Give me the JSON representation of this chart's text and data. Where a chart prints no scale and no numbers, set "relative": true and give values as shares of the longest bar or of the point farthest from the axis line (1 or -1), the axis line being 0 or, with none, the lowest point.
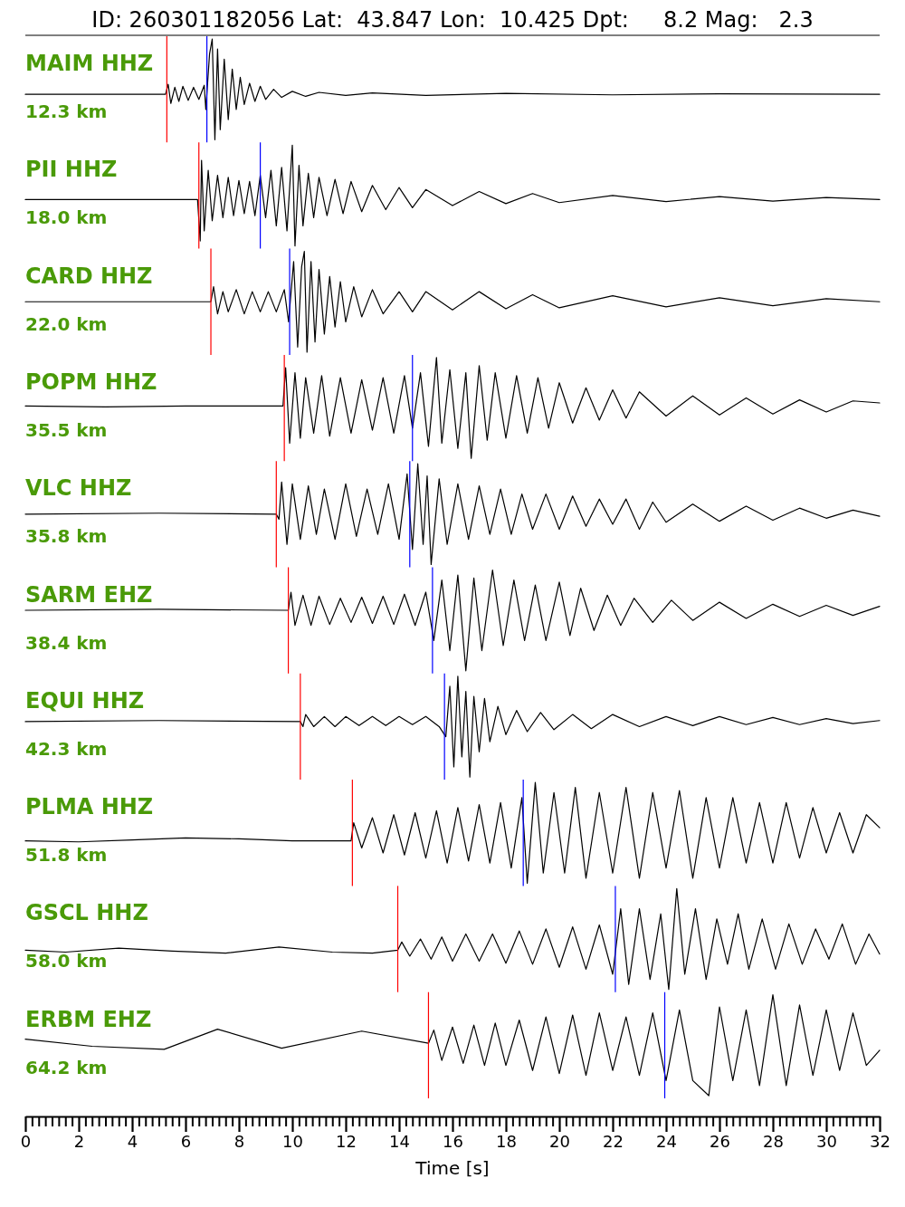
{
  "chart_data": [
    {
      "type": "other",
      "title": "ID: 260301182056 Lat:  43.847 Lon:  10.425 Dpt:     8.2 Mag:   2.3"
    },
    {
      "type": "line",
      "relative": true,
      "title": "MAIM HHZ",
      "annotations": [
        "12.3 km"
      ],
      "xlim": [
        0,
        32
      ],
      "tick_labels": false,
      "ref_lines": [
        {
          "axis": "x",
          "value": 5.3,
          "color": "#ff0000"
        },
        {
          "axis": "x",
          "value": 6.8,
          "color": "#0000ff"
        }
      ],
      "series": [
        {
          "color": "#000000",
          "x": [
            0,
            5.25,
            5.35,
            5.45,
            5.6,
            5.75,
            5.9,
            6.1,
            6.3,
            6.5,
            6.7,
            6.76,
            6.9,
            7.0,
            7.1,
            7.2,
            7.3,
            7.45,
            7.6,
            7.75,
            7.9,
            8.05,
            8.2,
            8.4,
            8.6,
            8.8,
            9.0,
            9.3,
            9.6,
            10,
            10.5,
            11,
            12,
            13,
            15,
            18,
            22,
            26,
            32
          ],
          "values": [
            0.45,
            0.45,
            0.55,
            0.36,
            0.52,
            0.38,
            0.53,
            0.39,
            0.52,
            0.4,
            0.54,
            0.3,
            0.85,
            1,
            0,
            0.9,
            0.1,
            0.8,
            0.2,
            0.7,
            0.3,
            0.62,
            0.35,
            0.56,
            0.38,
            0.53,
            0.4,
            0.5,
            0.42,
            0.48,
            0.43,
            0.47,
            0.44,
            0.465,
            0.44,
            0.46,
            0.445,
            0.455,
            0.45
          ]
        }
      ]
    },
    {
      "type": "line",
      "relative": true,
      "title": "PII HHZ",
      "annotations": [
        "18.0 km"
      ],
      "xlim": [
        0,
        32
      ],
      "tick_labels": false,
      "ref_lines": [
        {
          "axis": "x",
          "value": 6.5,
          "color": "#ff0000"
        },
        {
          "axis": "x",
          "value": 8.8,
          "color": "#0000ff"
        }
      ],
      "series": [
        {
          "color": "#000000",
          "x": [
            0,
            6.45,
            6.55,
            6.6,
            6.7,
            6.85,
            7.0,
            7.2,
            7.4,
            7.6,
            7.8,
            8.0,
            8.2,
            8.4,
            8.6,
            8.8,
            9.0,
            9.2,
            9.4,
            9.6,
            9.8,
            10.0,
            10.1,
            10.25,
            10.4,
            10.6,
            10.8,
            11.0,
            11.3,
            11.6,
            11.9,
            12.2,
            12.6,
            13.0,
            13.5,
            14,
            14.5,
            15,
            16,
            17,
            18,
            19,
            20,
            22,
            24,
            26,
            28,
            30,
            32
          ],
          "values": [
            0.46,
            0.46,
            0.05,
            0.85,
            0.15,
            0.75,
            0.25,
            0.7,
            0.28,
            0.68,
            0.3,
            0.65,
            0.32,
            0.64,
            0.3,
            0.7,
            0.28,
            0.75,
            0.2,
            0.78,
            0.15,
            1,
            0,
            0.8,
            0.2,
            0.72,
            0.28,
            0.68,
            0.3,
            0.66,
            0.32,
            0.64,
            0.34,
            0.6,
            0.36,
            0.58,
            0.38,
            0.56,
            0.4,
            0.54,
            0.42,
            0.52,
            0.43,
            0.5,
            0.44,
            0.49,
            0.445,
            0.48,
            0.46
          ]
        }
      ]
    },
    {
      "type": "line",
      "relative": true,
      "title": "CARD HHZ",
      "annotations": [
        "22.0 km"
      ],
      "xlim": [
        0,
        32
      ],
      "tick_labels": false,
      "ref_lines": [
        {
          "axis": "x",
          "value": 6.95,
          "color": "#ff0000"
        },
        {
          "axis": "x",
          "value": 9.9,
          "color": "#0000ff"
        }
      ],
      "series": [
        {
          "color": "#000000",
          "x": [
            0,
            6.95,
            7.05,
            7.2,
            7.4,
            7.6,
            7.9,
            8.2,
            8.5,
            8.8,
            9.1,
            9.4,
            9.7,
            9.86,
            10.05,
            10.2,
            10.35,
            10.45,
            10.55,
            10.7,
            10.85,
            11.0,
            11.2,
            11.4,
            11.6,
            11.8,
            12.0,
            12.3,
            12.6,
            13.0,
            13.4,
            14,
            14.5,
            15,
            16,
            17,
            18,
            19,
            20,
            22,
            24,
            26,
            28,
            30,
            32
          ],
          "values": [
            0.5,
            0.5,
            0.65,
            0.38,
            0.6,
            0.4,
            0.62,
            0.38,
            0.6,
            0.4,
            0.6,
            0.4,
            0.62,
            0.3,
            0.9,
            0.05,
            0.85,
            1,
            0,
            0.9,
            0.1,
            0.82,
            0.18,
            0.75,
            0.25,
            0.7,
            0.3,
            0.65,
            0.35,
            0.62,
            0.38,
            0.6,
            0.4,
            0.6,
            0.42,
            0.6,
            0.43,
            0.57,
            0.44,
            0.56,
            0.45,
            0.54,
            0.46,
            0.53,
            0.5
          ]
        }
      ]
    },
    {
      "type": "line",
      "relative": true,
      "title": "POPM HHZ",
      "annotations": [
        "35.5 km"
      ],
      "xlim": [
        0,
        32
      ],
      "tick_labels": false,
      "ref_lines": [
        {
          "axis": "x",
          "value": 9.7,
          "color": "#ff0000"
        },
        {
          "axis": "x",
          "value": 14.5,
          "color": "#0000ff"
        }
      ],
      "series": [
        {
          "color": "#000000",
          "x": [
            0,
            3,
            6,
            9.65,
            9.75,
            9.9,
            10.1,
            10.3,
            10.5,
            10.8,
            11.1,
            11.4,
            11.8,
            12.2,
            12.6,
            13.0,
            13.4,
            13.8,
            14.2,
            14.5,
            14.8,
            15.1,
            15.4,
            15.6,
            15.9,
            16.2,
            16.5,
            16.7,
            17.0,
            17.3,
            17.6,
            18.0,
            18.4,
            18.8,
            19.2,
            19.6,
            20,
            20.5,
            21,
            21.5,
            22,
            22.5,
            23,
            24,
            25,
            26,
            27,
            28,
            29,
            30,
            31,
            32
          ],
          "values": [
            0.52,
            0.51,
            0.52,
            0.52,
            0.9,
            0.15,
            0.85,
            0.2,
            0.8,
            0.25,
            0.82,
            0.22,
            0.8,
            0.25,
            0.78,
            0.28,
            0.8,
            0.25,
            0.82,
            0.3,
            0.85,
            0.12,
            1,
            0.15,
            0.88,
            0.1,
            0.85,
            0,
            0.92,
            0.18,
            0.85,
            0.2,
            0.82,
            0.25,
            0.8,
            0.3,
            0.75,
            0.35,
            0.7,
            0.38,
            0.68,
            0.4,
            0.66,
            0.42,
            0.62,
            0.43,
            0.6,
            0.44,
            0.58,
            0.46,
            0.57,
            0.55
          ]
        }
      ]
    },
    {
      "type": "line",
      "relative": true,
      "title": "VLC HHZ",
      "annotations": [
        "35.8 km"
      ],
      "xlim": [
        0,
        32
      ],
      "tick_labels": false,
      "ref_lines": [
        {
          "axis": "x",
          "value": 9.4,
          "color": "#ff0000"
        },
        {
          "axis": "x",
          "value": 14.4,
          "color": "#0000ff"
        }
      ],
      "series": [
        {
          "color": "#000000",
          "x": [
            0,
            5,
            9.4,
            9.5,
            9.6,
            9.8,
            10.0,
            10.3,
            10.6,
            10.9,
            11.2,
            11.6,
            12.0,
            12.4,
            12.8,
            13.2,
            13.6,
            14.0,
            14.3,
            14.5,
            14.7,
            14.9,
            15.05,
            15.2,
            15.5,
            15.8,
            16.2,
            16.6,
            17,
            17.4,
            17.8,
            18.2,
            18.6,
            19.0,
            19.5,
            20,
            20.5,
            21,
            21.5,
            22,
            22.5,
            23.0,
            23.5,
            24,
            25,
            26,
            27,
            28,
            29,
            30,
            31,
            32
          ],
          "values": [
            0.5,
            0.51,
            0.5,
            0.45,
            0.82,
            0.2,
            0.8,
            0.25,
            0.78,
            0.3,
            0.75,
            0.25,
            0.8,
            0.28,
            0.75,
            0.3,
            0.8,
            0.25,
            0.9,
            0.15,
            1,
            0.2,
            0.88,
            0,
            0.85,
            0.2,
            0.8,
            0.25,
            0.78,
            0.3,
            0.75,
            0.3,
            0.7,
            0.35,
            0.7,
            0.35,
            0.68,
            0.38,
            0.65,
            0.4,
            0.65,
            0.35,
            0.62,
            0.42,
            0.6,
            0.43,
            0.58,
            0.44,
            0.56,
            0.46,
            0.54,
            0.48
          ]
        }
      ]
    },
    {
      "type": "line",
      "relative": true,
      "title": "SARM EHZ",
      "annotations": [
        "38.4 km"
      ],
      "xlim": [
        0,
        32
      ],
      "tick_labels": false,
      "ref_lines": [
        {
          "axis": "x",
          "value": 9.85,
          "color": "#ff0000"
        },
        {
          "axis": "x",
          "value": 15.25,
          "color": "#0000ff"
        }
      ],
      "series": [
        {
          "color": "#000000",
          "x": [
            0,
            5,
            9.85,
            9.95,
            10.1,
            10.4,
            10.7,
            11.0,
            11.4,
            11.8,
            12.2,
            12.6,
            13.0,
            13.4,
            13.8,
            14.2,
            14.6,
            15.0,
            15.3,
            15.6,
            15.9,
            16.2,
            16.5,
            16.8,
            17.1,
            17.5,
            17.9,
            18.3,
            18.7,
            19.1,
            19.5,
            20,
            20.4,
            20.8,
            21.3,
            21.8,
            22.3,
            22.8,
            23.5,
            24.2,
            25,
            26,
            27,
            28,
            29,
            30,
            31,
            32
          ],
          "values": [
            0.6,
            0.61,
            0.6,
            0.78,
            0.45,
            0.75,
            0.45,
            0.74,
            0.46,
            0.72,
            0.48,
            0.73,
            0.47,
            0.74,
            0.46,
            0.76,
            0.45,
            0.78,
            0.3,
            0.9,
            0.2,
            0.95,
            0,
            0.92,
            0.2,
            1,
            0.25,
            0.9,
            0.3,
            0.85,
            0.3,
            0.88,
            0.35,
            0.82,
            0.4,
            0.75,
            0.45,
            0.72,
            0.48,
            0.7,
            0.5,
            0.68,
            0.52,
            0.66,
            0.54,
            0.65,
            0.55,
            0.64
          ]
        }
      ]
    },
    {
      "type": "line",
      "relative": true,
      "title": "EQUI HHZ",
      "annotations": [
        "42.3 km"
      ],
      "xlim": [
        0,
        32
      ],
      "tick_labels": false,
      "ref_lines": [
        {
          "axis": "x",
          "value": 10.3,
          "color": "#ff0000"
        },
        {
          "axis": "x",
          "value": 15.7,
          "color": "#0000ff"
        }
      ],
      "series": [
        {
          "color": "#000000",
          "x": [
            0,
            5,
            10.3,
            10.4,
            10.5,
            10.8,
            11.2,
            11.6,
            12,
            12.5,
            13,
            13.5,
            14,
            14.5,
            15,
            15.5,
            15.75,
            15.9,
            16.05,
            16.2,
            16.35,
            16.5,
            16.65,
            16.8,
            17.0,
            17.2,
            17.4,
            17.7,
            18,
            18.4,
            18.8,
            19.3,
            19.8,
            20.5,
            21.2,
            22,
            23,
            24,
            25,
            26,
            27,
            28,
            29,
            30,
            31,
            32
          ],
          "values": [
            0.55,
            0.56,
            0.55,
            0.5,
            0.62,
            0.5,
            0.6,
            0.5,
            0.6,
            0.51,
            0.6,
            0.51,
            0.6,
            0.52,
            0.6,
            0.5,
            0.4,
            0.9,
            0.1,
            1,
            0.2,
            0.85,
            0,
            0.8,
            0.25,
            0.78,
            0.35,
            0.7,
            0.42,
            0.66,
            0.45,
            0.64,
            0.47,
            0.62,
            0.48,
            0.62,
            0.5,
            0.6,
            0.51,
            0.6,
            0.52,
            0.59,
            0.52,
            0.58,
            0.53,
            0.56
          ]
        }
      ]
    },
    {
      "type": "line",
      "relative": true,
      "title": "PLMA HHZ",
      "annotations": [
        "51.8 km"
      ],
      "xlim": [
        0,
        32
      ],
      "tick_labels": false,
      "ref_lines": [
        {
          "axis": "x",
          "value": 12.25,
          "color": "#ff0000"
        },
        {
          "axis": "x",
          "value": 18.65,
          "color": "#0000ff"
        }
      ],
      "series": [
        {
          "color": "#000000",
          "x": [
            0,
            2,
            4,
            6,
            8,
            10,
            12.2,
            12.3,
            12.6,
            13.0,
            13.4,
            13.8,
            14.2,
            14.6,
            15.0,
            15.4,
            15.8,
            16.2,
            16.6,
            17.0,
            17.4,
            17.8,
            18.2,
            18.6,
            18.8,
            19.1,
            19.4,
            19.8,
            20.2,
            20.6,
            21.0,
            21.5,
            22.0,
            22.5,
            23.0,
            23.5,
            24.0,
            24.5,
            25.0,
            25.5,
            26,
            26.5,
            27,
            27.5,
            28,
            28.5,
            29,
            29.5,
            30,
            30.5,
            31,
            31.5,
            32
          ],
          "values": [
            0.42,
            0.41,
            0.43,
            0.45,
            0.44,
            0.42,
            0.42,
            0.6,
            0.35,
            0.65,
            0.3,
            0.68,
            0.28,
            0.7,
            0.25,
            0.72,
            0.2,
            0.75,
            0.22,
            0.78,
            0.2,
            0.8,
            0.15,
            0.85,
            0,
            1,
            0.1,
            0.9,
            0.1,
            0.95,
            0.05,
            0.9,
            0.1,
            0.95,
            0.05,
            0.9,
            0.15,
            0.92,
            0.05,
            0.85,
            0.15,
            0.85,
            0.2,
            0.8,
            0.2,
            0.8,
            0.25,
            0.75,
            0.3,
            0.7,
            0.3,
            0.68,
            0.55
          ]
        }
      ]
    },
    {
      "type": "line",
      "relative": true,
      "title": "GSCL HHZ",
      "annotations": [
        "58.0 km"
      ],
      "xlim": [
        0,
        32
      ],
      "tick_labels": false,
      "ref_lines": [
        {
          "axis": "x",
          "value": 13.95,
          "color": "#ff0000"
        },
        {
          "axis": "x",
          "value": 22.1,
          "color": "#0000ff"
        }
      ],
      "series": [
        {
          "color": "#000000",
          "x": [
            0,
            1.5,
            3.5,
            5.5,
            7.5,
            9.5,
            11.5,
            13.0,
            13.95,
            14.1,
            14.4,
            14.8,
            15.2,
            15.6,
            16.0,
            16.5,
            17.0,
            17.5,
            18.0,
            18.5,
            19.0,
            19.5,
            20,
            20.5,
            21,
            21.5,
            22,
            22.3,
            22.6,
            23,
            23.4,
            23.8,
            24.1,
            24.4,
            24.7,
            25.1,
            25.5,
            25.9,
            26.3,
            26.7,
            27.1,
            27.6,
            28.1,
            28.6,
            29.1,
            29.6,
            30.1,
            30.6,
            31.1,
            31.6,
            32
          ],
          "values": [
            0.39,
            0.37,
            0.41,
            0.38,
            0.36,
            0.42,
            0.37,
            0.36,
            0.39,
            0.47,
            0.33,
            0.5,
            0.3,
            0.52,
            0.28,
            0.55,
            0.28,
            0.55,
            0.26,
            0.58,
            0.25,
            0.6,
            0.22,
            0.62,
            0.2,
            0.64,
            0.15,
            0.8,
            0.05,
            0.8,
            0.1,
            0.75,
            0,
            1,
            0.15,
            0.8,
            0.1,
            0.7,
            0.25,
            0.75,
            0.2,
            0.7,
            0.2,
            0.65,
            0.25,
            0.6,
            0.3,
            0.65,
            0.25,
            0.55,
            0.35
          ]
        }
      ]
    },
    {
      "type": "line",
      "relative": true,
      "title": "ERBM EHZ",
      "annotations": [
        "64.2 km"
      ],
      "xlim": [
        0,
        32
      ],
      "tick_labels": "x",
      "xlabel": "Time [s]",
      "xticks": [
        0,
        {
          "value": 0.25,
          "label": null
        },
        {
          "value": 0.5,
          "label": null
        },
        {
          "value": 0.75,
          "label": null
        },
        {
          "value": 1,
          "label": null
        },
        {
          "value": 1.25,
          "label": null
        },
        {
          "value": 1.5,
          "label": null
        },
        {
          "value": 1.75,
          "label": null
        },
        2,
        {
          "value": 2.25,
          "label": null
        },
        {
          "value": 2.5,
          "label": null
        },
        {
          "value": 2.75,
          "label": null
        },
        {
          "value": 3,
          "label": null
        },
        {
          "value": 3.25,
          "label": null
        },
        {
          "value": 3.5,
          "label": null
        },
        {
          "value": 3.75,
          "label": null
        },
        4,
        {
          "value": 4.25,
          "label": null
        },
        {
          "value": 4.5,
          "label": null
        },
        {
          "value": 4.75,
          "label": null
        },
        {
          "value": 5,
          "label": null
        },
        {
          "value": 5.25,
          "label": null
        },
        {
          "value": 5.5,
          "label": null
        },
        {
          "value": 5.75,
          "label": null
        },
        6,
        {
          "value": 6.25,
          "label": null
        },
        {
          "value": 6.5,
          "label": null
        },
        {
          "value": 6.75,
          "label": null
        },
        {
          "value": 7,
          "label": null
        },
        {
          "value": 7.25,
          "label": null
        },
        {
          "value": 7.5,
          "label": null
        },
        {
          "value": 7.75,
          "label": null
        },
        8,
        {
          "value": 8.25,
          "label": null
        },
        {
          "value": 8.5,
          "label": null
        },
        {
          "value": 8.75,
          "label": null
        },
        {
          "value": 9,
          "label": null
        },
        {
          "value": 9.25,
          "label": null
        },
        {
          "value": 9.5,
          "label": null
        },
        {
          "value": 9.75,
          "label": null
        },
        10,
        {
          "value": 10.25,
          "label": null
        },
        {
          "value": 10.5,
          "label": null
        },
        {
          "value": 10.75,
          "label": null
        },
        {
          "value": 11,
          "label": null
        },
        {
          "value": 11.25,
          "label": null
        },
        {
          "value": 11.5,
          "label": null
        },
        {
          "value": 11.75,
          "label": null
        },
        12,
        {
          "value": 12.25,
          "label": null
        },
        {
          "value": 12.5,
          "label": null
        },
        {
          "value": 12.75,
          "label": null
        },
        {
          "value": 13,
          "label": null
        },
        {
          "value": 13.25,
          "label": null
        },
        {
          "value": 13.5,
          "label": null
        },
        {
          "value": 13.75,
          "label": null
        },
        14,
        {
          "value": 14.25,
          "label": null
        },
        {
          "value": 14.5,
          "label": null
        },
        {
          "value": 14.75,
          "label": null
        },
        {
          "value": 15,
          "label": null
        },
        {
          "value": 15.25,
          "label": null
        },
        {
          "value": 15.5,
          "label": null
        },
        {
          "value": 15.75,
          "label": null
        },
        16,
        {
          "value": 16.25,
          "label": null
        },
        {
          "value": 16.5,
          "label": null
        },
        {
          "value": 16.75,
          "label": null
        },
        {
          "value": 17,
          "label": null
        },
        {
          "value": 17.25,
          "label": null
        },
        {
          "value": 17.5,
          "label": null
        },
        {
          "value": 17.75,
          "label": null
        },
        18,
        {
          "value": 18.25,
          "label": null
        },
        {
          "value": 18.5,
          "label": null
        },
        {
          "value": 18.75,
          "label": null
        },
        {
          "value": 19,
          "label": null
        },
        {
          "value": 19.25,
          "label": null
        },
        {
          "value": 19.5,
          "label": null
        },
        {
          "value": 19.75,
          "label": null
        },
        20,
        {
          "value": 20.25,
          "label": null
        },
        {
          "value": 20.5,
          "label": null
        },
        {
          "value": 20.75,
          "label": null
        },
        {
          "value": 21,
          "label": null
        },
        {
          "value": 21.25,
          "label": null
        },
        {
          "value": 21.5,
          "label": null
        },
        {
          "value": 21.75,
          "label": null
        },
        22,
        {
          "value": 22.25,
          "label": null
        },
        {
          "value": 22.5,
          "label": null
        },
        {
          "value": 22.75,
          "label": null
        },
        {
          "value": 23,
          "label": null
        },
        {
          "value": 23.25,
          "label": null
        },
        {
          "value": 23.5,
          "label": null
        },
        {
          "value": 23.75,
          "label": null
        },
        24,
        {
          "value": 24.25,
          "label": null
        },
        {
          "value": 24.5,
          "label": null
        },
        {
          "value": 24.75,
          "label": null
        },
        {
          "value": 25,
          "label": null
        },
        {
          "value": 25.25,
          "label": null
        },
        {
          "value": 25.5,
          "label": null
        },
        {
          "value": 25.75,
          "label": null
        },
        26,
        {
          "value": 26.25,
          "label": null
        },
        {
          "value": 26.5,
          "label": null
        },
        {
          "value": 26.75,
          "label": null
        },
        {
          "value": 27,
          "label": null
        },
        {
          "value": 27.25,
          "label": null
        },
        {
          "value": 27.5,
          "label": null
        },
        {
          "value": 27.75,
          "label": null
        },
        28,
        {
          "value": 28.25,
          "label": null
        },
        {
          "value": 28.5,
          "label": null
        },
        {
          "value": 28.75,
          "label": null
        },
        {
          "value": 29,
          "label": null
        },
        {
          "value": 29.25,
          "label": null
        },
        {
          "value": 29.5,
          "label": null
        },
        {
          "value": 29.75,
          "label": null
        },
        30,
        {
          "value": 30.25,
          "label": null
        },
        {
          "value": 30.5,
          "label": null
        },
        {
          "value": 30.75,
          "label": null
        },
        {
          "value": 31,
          "label": null
        },
        {
          "value": 31.25,
          "label": null
        },
        {
          "value": 31.5,
          "label": null
        },
        {
          "value": 31.75,
          "label": null
        },
        32
      ],
      "ref_lines": [
        {
          "axis": "x",
          "value": 15.1,
          "color": "#ff0000"
        },
        {
          "axis": "x",
          "value": 23.95,
          "color": "#0000ff"
        }
      ],
      "series": [
        {
          "color": "#000000",
          "x": [
            0,
            2.5,
            5.2,
            7.2,
            9.6,
            12.6,
            15.1,
            15.3,
            15.6,
            16.0,
            16.4,
            16.8,
            17.2,
            17.6,
            18.0,
            18.5,
            19,
            19.5,
            20,
            20.5,
            21,
            21.5,
            22,
            22.5,
            23,
            23.5,
            24,
            24.5,
            25,
            25.6,
            26,
            26.5,
            27,
            27.5,
            28,
            28.5,
            29,
            29.5,
            30,
            30.5,
            31,
            31.5,
            32
          ],
          "values": [
            0.635,
            0.577,
            0.552,
            0.718,
            0.561,
            0.702,
            0.602,
            0.71,
            0.461,
            0.735,
            0.436,
            0.751,
            0.42,
            0.768,
            0.42,
            0.793,
            0.378,
            0.818,
            0.353,
            0.834,
            0.337,
            0.851,
            0.378,
            0.818,
            0.337,
            0.851,
            0.295,
            0.876,
            0.295,
            0.171,
            0.901,
            0.295,
            0.876,
            0.254,
            1,
            0.254,
            0.917,
            0.337,
            0.876,
            0.378,
            0.851,
            0.42,
            0.544
          ]
        }
      ]
    }
  ]
}
